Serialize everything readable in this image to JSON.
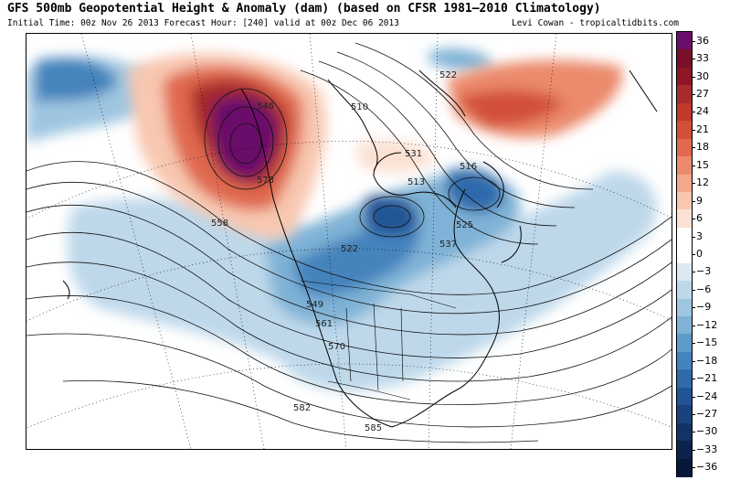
{
  "header": {
    "title": "GFS 500mb Geopotential Height & Anomaly (dam) (based on CFSR 1981–2010 Climatology)",
    "subtitle": "Initial Time: 00z Nov 26 2013 Forecast Hour: [240] valid at 00z Dec 06 2013",
    "credit": "Levi Cowan - tropicaltidbits.com"
  },
  "contour_labels": [
    "558",
    "546",
    "573",
    "510",
    "522",
    "531",
    "516",
    "513",
    "525",
    "537",
    "522",
    "549",
    "561",
    "570",
    "582",
    "585"
  ],
  "colorbar": {
    "labels": [
      "36",
      "33",
      "30",
      "27",
      "24",
      "21",
      "18",
      "15",
      "12",
      "9",
      "6",
      "3",
      "0",
      "−3",
      "−6",
      "−9",
      "−12",
      "−15",
      "−18",
      "−21",
      "−24",
      "−27",
      "−30",
      "−33",
      "−36"
    ],
    "colors": [
      "#6b0d6b",
      "#7a0f2a",
      "#8e1626",
      "#a82b2c",
      "#c0392b",
      "#d24f3a",
      "#e0694f",
      "#eb8a6c",
      "#f3a88c",
      "#f8c7b0",
      "#fbe1d3",
      "#ffffff",
      "#ffffff",
      "#dbe9f3",
      "#bed8ea",
      "#9ec6e1",
      "#7fb2d6",
      "#5d9bca",
      "#4583bd",
      "#2f6aab",
      "#215595",
      "#1a427c",
      "#133364",
      "#0c244d",
      "#07183a"
    ]
  }
}
